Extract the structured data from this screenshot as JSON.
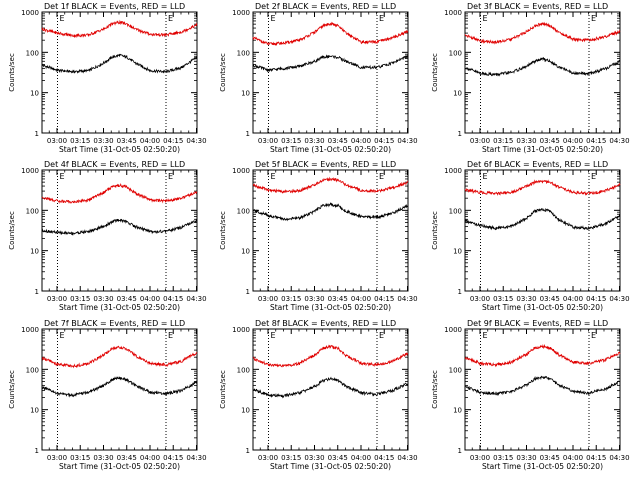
{
  "figure": {
    "background": "#ffffff",
    "axis_color": "#000000",
    "event_color": "#000000",
    "lld_color": "#e00000",
    "xlabel": "Start Time (31-Oct-05 02:50:20)",
    "ylabel": "Counts/sec",
    "xticks": [
      "03:00",
      "03:15",
      "03:30",
      "03:45",
      "04:00",
      "04:15",
      "04:30"
    ],
    "yticks": [
      "1",
      "10",
      "100",
      "1000"
    ],
    "marker_labels": [
      "E",
      "E"
    ]
  },
  "chart_data": [
    {
      "type": "line",
      "title": "Det 1f BLACK = Events, RED = LLD",
      "x_units": "minutes since 02:50:20",
      "xlim": [
        0,
        100
      ],
      "ylim": [
        1,
        1000
      ],
      "yscale": "log",
      "markers_x": [
        10,
        80
      ],
      "series": [
        {
          "key": "events",
          "x": [
            0,
            10,
            20,
            30,
            40,
            45,
            50,
            55,
            60,
            70,
            80,
            90,
            100
          ],
          "y": [
            48,
            36,
            33,
            35,
            55,
            75,
            85,
            75,
            55,
            35,
            33,
            42,
            75
          ]
        },
        {
          "key": "lld",
          "x": [
            0,
            10,
            20,
            30,
            40,
            45,
            50,
            55,
            60,
            70,
            80,
            90,
            100
          ],
          "y": [
            380,
            300,
            260,
            270,
            380,
            500,
            560,
            500,
            380,
            280,
            270,
            320,
            480
          ]
        }
      ]
    },
    {
      "type": "line",
      "title": "Det 2f BLACK = Events, RED = LLD",
      "x_units": "minutes since 02:50:20",
      "xlim": [
        0,
        100
      ],
      "ylim": [
        1,
        1000
      ],
      "yscale": "log",
      "markers_x": [
        10,
        80
      ],
      "series": [
        {
          "key": "events",
          "x": [
            0,
            10,
            20,
            30,
            40,
            45,
            50,
            55,
            60,
            70,
            80,
            90,
            100
          ],
          "y": [
            48,
            36,
            40,
            45,
            60,
            75,
            80,
            75,
            60,
            42,
            42,
            55,
            80
          ]
        },
        {
          "key": "lld",
          "x": [
            0,
            10,
            20,
            30,
            40,
            45,
            50,
            55,
            60,
            70,
            80,
            90,
            100
          ],
          "y": [
            230,
            160,
            170,
            200,
            320,
            450,
            520,
            450,
            300,
            180,
            180,
            230,
            330
          ]
        }
      ]
    },
    {
      "type": "line",
      "title": "Det 3f BLACK = Events, RED = LLD",
      "x_units": "minutes since 02:50:20",
      "xlim": [
        0,
        100
      ],
      "ylim": [
        1,
        1000
      ],
      "yscale": "log",
      "markers_x": [
        10,
        80
      ],
      "series": [
        {
          "key": "events",
          "x": [
            0,
            10,
            20,
            30,
            40,
            45,
            50,
            55,
            60,
            70,
            80,
            90,
            100
          ],
          "y": [
            42,
            30,
            28,
            32,
            45,
            60,
            70,
            60,
            45,
            30,
            30,
            38,
            60
          ]
        },
        {
          "key": "lld",
          "x": [
            0,
            10,
            20,
            30,
            40,
            45,
            50,
            55,
            60,
            70,
            80,
            90,
            100
          ],
          "y": [
            270,
            190,
            180,
            210,
            330,
            450,
            520,
            450,
            320,
            210,
            200,
            240,
            330
          ]
        }
      ]
    },
    {
      "type": "line",
      "title": "Det 4f BLACK = Events, RED = LLD",
      "x_units": "minutes since 02:50:20",
      "xlim": [
        0,
        100
      ],
      "ylim": [
        1,
        1000
      ],
      "yscale": "log",
      "markers_x": [
        10,
        80
      ],
      "series": [
        {
          "key": "events",
          "x": [
            0,
            10,
            20,
            30,
            40,
            45,
            50,
            55,
            60,
            70,
            80,
            90,
            100
          ],
          "y": [
            32,
            28,
            27,
            30,
            40,
            52,
            58,
            52,
            40,
            30,
            30,
            38,
            55
          ]
        },
        {
          "key": "lld",
          "x": [
            0,
            10,
            20,
            30,
            40,
            45,
            50,
            55,
            60,
            70,
            80,
            90,
            100
          ],
          "y": [
            210,
            170,
            160,
            180,
            280,
            380,
            420,
            380,
            270,
            180,
            170,
            200,
            290
          ]
        }
      ]
    },
    {
      "type": "line",
      "title": "Det 5f BLACK = Events, RED = LLD",
      "x_units": "minutes since 02:50:20",
      "xlim": [
        0,
        100
      ],
      "ylim": [
        1,
        1000
      ],
      "yscale": "log",
      "markers_x": [
        10,
        80
      ],
      "series": [
        {
          "key": "events",
          "x": [
            0,
            10,
            20,
            30,
            40,
            45,
            50,
            55,
            60,
            70,
            80,
            90,
            100
          ],
          "y": [
            100,
            75,
            60,
            65,
            95,
            130,
            140,
            130,
            95,
            70,
            68,
            85,
            130
          ]
        },
        {
          "key": "lld",
          "x": [
            0,
            10,
            20,
            30,
            40,
            45,
            50,
            55,
            60,
            70,
            80,
            90,
            100
          ],
          "y": [
            420,
            320,
            290,
            310,
            430,
            560,
            600,
            560,
            430,
            310,
            300,
            360,
            500
          ]
        }
      ]
    },
    {
      "type": "line",
      "title": "Det 6f BLACK = Events, RED = LLD",
      "x_units": "minutes since 02:50:20",
      "xlim": [
        0,
        100
      ],
      "ylim": [
        1,
        1000
      ],
      "yscale": "log",
      "markers_x": [
        10,
        80
      ],
      "series": [
        {
          "key": "events",
          "x": [
            0,
            10,
            20,
            30,
            40,
            45,
            50,
            55,
            60,
            70,
            80,
            90,
            100
          ],
          "y": [
            55,
            42,
            36,
            40,
            65,
            95,
            105,
            95,
            60,
            38,
            36,
            45,
            75
          ]
        },
        {
          "key": "lld",
          "x": [
            0,
            10,
            20,
            30,
            40,
            45,
            50,
            55,
            60,
            70,
            80,
            90,
            100
          ],
          "y": [
            320,
            280,
            260,
            280,
            400,
            500,
            520,
            500,
            380,
            280,
            260,
            300,
            440
          ]
        }
      ]
    },
    {
      "type": "line",
      "title": "Det 7f BLACK = Events, RED = LLD",
      "x_units": "minutes since 02:50:20",
      "xlim": [
        0,
        100
      ],
      "ylim": [
        1,
        1000
      ],
      "yscale": "log",
      "markers_x": [
        10,
        80
      ],
      "series": [
        {
          "key": "events",
          "x": [
            0,
            10,
            20,
            30,
            40,
            45,
            50,
            55,
            60,
            70,
            80,
            90,
            100
          ],
          "y": [
            36,
            25,
            23,
            27,
            40,
            55,
            62,
            55,
            40,
            27,
            25,
            30,
            48
          ]
        },
        {
          "key": "lld",
          "x": [
            0,
            10,
            20,
            30,
            40,
            45,
            50,
            55,
            60,
            70,
            80,
            90,
            100
          ],
          "y": [
            190,
            135,
            120,
            140,
            230,
            320,
            350,
            320,
            220,
            140,
            130,
            160,
            260
          ]
        }
      ]
    },
    {
      "type": "line",
      "title": "Det 8f BLACK = Events, RED = LLD",
      "x_units": "minutes since 02:50:20",
      "xlim": [
        0,
        100
      ],
      "ylim": [
        1,
        1000
      ],
      "yscale": "log",
      "markers_x": [
        10,
        80
      ],
      "series": [
        {
          "key": "events",
          "x": [
            0,
            10,
            20,
            30,
            40,
            45,
            50,
            55,
            60,
            70,
            80,
            90,
            100
          ],
          "y": [
            32,
            23,
            22,
            26,
            38,
            52,
            60,
            52,
            38,
            26,
            24,
            30,
            45
          ]
        },
        {
          "key": "lld",
          "x": [
            0,
            10,
            20,
            30,
            40,
            45,
            50,
            55,
            60,
            70,
            80,
            90,
            100
          ],
          "y": [
            190,
            130,
            120,
            140,
            230,
            330,
            370,
            330,
            220,
            140,
            130,
            160,
            250
          ]
        }
      ]
    },
    {
      "type": "line",
      "title": "Det 9f BLACK = Events, RED = LLD",
      "x_units": "minutes since 02:50:20",
      "xlim": [
        0,
        100
      ],
      "ylim": [
        1,
        1000
      ],
      "yscale": "log",
      "markers_x": [
        10,
        80
      ],
      "series": [
        {
          "key": "events",
          "x": [
            0,
            10,
            20,
            30,
            40,
            45,
            50,
            55,
            60,
            70,
            80,
            90,
            100
          ],
          "y": [
            38,
            27,
            25,
            28,
            42,
            58,
            65,
            58,
            42,
            28,
            26,
            32,
            50
          ]
        },
        {
          "key": "lld",
          "x": [
            0,
            10,
            20,
            30,
            40,
            45,
            50,
            55,
            60,
            70,
            80,
            90,
            100
          ],
          "y": [
            200,
            140,
            130,
            150,
            240,
            340,
            370,
            340,
            240,
            150,
            140,
            170,
            260
          ]
        }
      ]
    }
  ]
}
